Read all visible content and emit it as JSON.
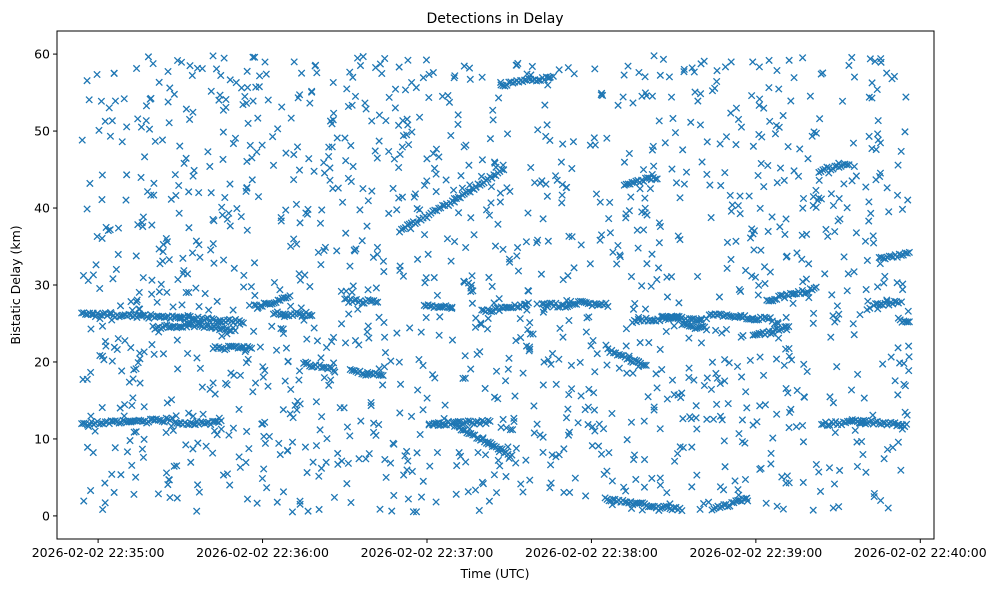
{
  "chart_data": {
    "type": "scatter",
    "title": "Detections in Delay",
    "xlabel": "Time (UTC)",
    "ylabel": "Bistatic Delay (km)",
    "marker": "x",
    "color": "#1f77b4",
    "grid": false,
    "legend": "none",
    "xlim": [
      "2026-02-02 22:34:45",
      "2026-02-02 22:40:05"
    ],
    "ylim": [
      -3,
      63
    ],
    "x_ticks": [
      "2026-02-02 22:35:00",
      "2026-02-02 22:36:00",
      "2026-02-02 22:37:00",
      "2026-02-02 22:38:00",
      "2026-02-02 22:39:00",
      "2026-02-02 22:40:00"
    ],
    "y_ticks": [
      0,
      10,
      20,
      30,
      40,
      50,
      60
    ],
    "tracks": [
      {
        "x": [
          "2026-02-02 22:34:54",
          "2026-02-02 22:35:12",
          "2026-02-02 22:35:27"
        ],
        "y": [
          12.0,
          12.2,
          12.5
        ]
      },
      {
        "x": [
          "2026-02-02 22:35:28",
          "2026-02-02 22:35:44"
        ],
        "y": [
          12.0,
          12.1
        ]
      },
      {
        "x": [
          "2026-02-02 22:34:54",
          "2026-02-02 22:35:30",
          "2026-02-02 22:35:53"
        ],
        "y": [
          26.2,
          25.8,
          25.2
        ]
      },
      {
        "x": [
          "2026-02-02 22:35:20",
          "2026-02-02 22:35:33",
          "2026-02-02 22:35:50"
        ],
        "y": [
          24.5,
          24.8,
          24.2
        ]
      },
      {
        "x": [
          "2026-02-02 22:36:04",
          "2026-02-02 22:36:18"
        ],
        "y": [
          26.3,
          26.2
        ]
      },
      {
        "x": [
          "2026-02-02 22:35:42",
          "2026-02-02 22:35:56"
        ],
        "y": [
          21.8,
          21.8
        ]
      },
      {
        "x": [
          "2026-02-02 22:35:57",
          "2026-02-02 22:36:10"
        ],
        "y": [
          27.2,
          28.4
        ]
      },
      {
        "x": [
          "2026-02-02 22:36:15",
          "2026-02-02 22:36:26"
        ],
        "y": [
          19.8,
          19.0
        ]
      },
      {
        "x": [
          "2026-02-02 22:36:32",
          "2026-02-02 22:36:44"
        ],
        "y": [
          18.8,
          18.2
        ]
      },
      {
        "x": [
          "2026-02-02 22:36:30",
          "2026-02-02 22:36:42"
        ],
        "y": [
          28.0,
          27.8
        ]
      },
      {
        "x": [
          "2026-02-02 22:36:59",
          "2026-02-02 22:37:09"
        ],
        "y": [
          27.3,
          27.0
        ]
      },
      {
        "x": [
          "2026-02-02 22:36:50",
          "2026-02-02 22:37:10",
          "2026-02-02 22:37:28"
        ],
        "y": [
          37.0,
          41.0,
          45.0
        ]
      },
      {
        "x": [
          "2026-02-02 22:37:20",
          "2026-02-02 22:37:37"
        ],
        "y": [
          26.5,
          27.5
        ]
      },
      {
        "x": [
          "2026-02-02 22:37:42",
          "2026-02-02 22:37:52"
        ],
        "y": [
          27.6,
          27.2
        ]
      },
      {
        "x": [
          "2026-02-02 22:37:02",
          "2026-02-02 22:37:23"
        ],
        "y": [
          12.0,
          12.2
        ]
      },
      {
        "x": [
          "2026-02-02 22:37:11",
          "2026-02-02 22:37:31"
        ],
        "y": [
          11.6,
          7.8
        ]
      },
      {
        "x": [
          "2026-02-02 22:37:27",
          "2026-02-02 22:37:45"
        ],
        "y": [
          56.0,
          57.0
        ]
      },
      {
        "x": [
          "2026-02-02 22:38:06",
          "2026-02-02 22:38:20"
        ],
        "y": [
          21.5,
          19.5
        ]
      },
      {
        "x": [
          "2026-02-02 22:37:51",
          "2026-02-02 22:38:06"
        ],
        "y": [
          27.8,
          27.4
        ]
      },
      {
        "x": [
          "2026-02-02 22:38:05",
          "2026-02-02 22:38:33"
        ],
        "y": [
          2.2,
          0.8
        ]
      },
      {
        "x": [
          "2026-02-02 22:38:15",
          "2026-02-02 22:38:32"
        ],
        "y": [
          25.3,
          25.8
        ]
      },
      {
        "x": [
          "2026-02-02 22:38:12",
          "2026-02-02 22:38:24"
        ],
        "y": [
          43.0,
          44.0
        ]
      },
      {
        "x": [
          "2026-02-02 22:38:26",
          "2026-02-02 22:38:40"
        ],
        "y": [
          25.8,
          25.4
        ]
      },
      {
        "x": [
          "2026-02-02 22:38:33",
          "2026-02-02 22:38:42"
        ],
        "y": [
          24.8,
          24.4
        ]
      },
      {
        "x": [
          "2026-02-02 22:38:43",
          "2026-02-02 22:39:06"
        ],
        "y": [
          26.2,
          25.5
        ]
      },
      {
        "x": [
          "2026-02-02 22:39:04",
          "2026-02-02 22:39:22"
        ],
        "y": [
          28.0,
          29.5
        ]
      },
      {
        "x": [
          "2026-02-02 22:38:44",
          "2026-02-02 22:38:57"
        ],
        "y": [
          0.8,
          2.2
        ]
      },
      {
        "x": [
          "2026-02-02 22:39:24",
          "2026-02-02 22:39:40"
        ],
        "y": [
          11.9,
          12.3
        ]
      },
      {
        "x": [
          "2026-02-02 22:39:40",
          "2026-02-02 22:39:55"
        ],
        "y": [
          12.2,
          11.8
        ]
      },
      {
        "x": [
          "2026-02-02 22:39:43",
          "2026-02-02 22:39:52"
        ],
        "y": [
          27.5,
          27.7
        ]
      },
      {
        "x": [
          "2026-02-02 22:39:52",
          "2026-02-02 22:39:56"
        ],
        "y": [
          25.5,
          25.0
        ]
      },
      {
        "x": [
          "2026-02-02 22:39:45",
          "2026-02-02 22:39:56"
        ],
        "y": [
          33.5,
          34.0
        ]
      },
      {
        "x": [
          "2026-02-02 22:38:59",
          "2026-02-02 22:39:12"
        ],
        "y": [
          23.3,
          24.5
        ]
      },
      {
        "x": [
          "2026-02-02 22:39:23",
          "2026-02-02 22:39:34"
        ],
        "y": [
          44.8,
          45.8
        ]
      }
    ]
  }
}
